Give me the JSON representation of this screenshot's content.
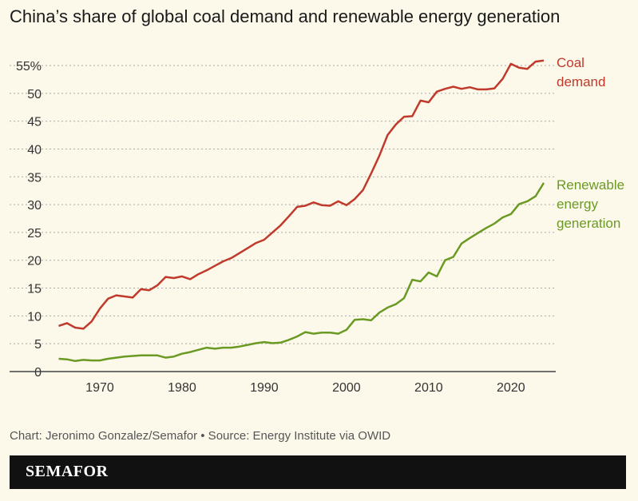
{
  "title": "China’s share of global coal demand and renewable energy generation",
  "credit": "Chart: Jeronimo Gonzalez/Semafor • Source: Energy Institute via OWID",
  "brand": "SEMAFOR",
  "chart_data": {
    "type": "line",
    "title": "China’s share of global coal demand and renewable energy generation",
    "xlabel": "",
    "ylabel": "",
    "xlim": [
      1965,
      2024
    ],
    "ylim": [
      0,
      55
    ],
    "x_ticks": [
      1970,
      1980,
      1990,
      2000,
      2010,
      2020
    ],
    "y_ticks": [
      0,
      5,
      10,
      15,
      20,
      25,
      30,
      35,
      40,
      45,
      50,
      55
    ],
    "y_tick_labels": [
      "0",
      "5",
      "10",
      "15",
      "20",
      "25",
      "30",
      "35",
      "40",
      "45",
      "50",
      "55%"
    ],
    "grid": "horizontal dotted",
    "legend": "direct labels at line ends (right)",
    "x": [
      1965,
      1966,
      1967,
      1968,
      1969,
      1970,
      1971,
      1972,
      1973,
      1974,
      1975,
      1976,
      1977,
      1978,
      1979,
      1980,
      1981,
      1982,
      1983,
      1984,
      1985,
      1986,
      1987,
      1988,
      1989,
      1990,
      1991,
      1992,
      1993,
      1994,
      1995,
      1996,
      1997,
      1998,
      1999,
      2000,
      2001,
      2002,
      2003,
      2004,
      2005,
      2006,
      2007,
      2008,
      2009,
      2010,
      2011,
      2012,
      2013,
      2014,
      2015,
      2016,
      2017,
      2018,
      2019,
      2020,
      2021,
      2022,
      2023,
      2024
    ],
    "series": [
      {
        "name": "Coal demand",
        "color": "#c0392b",
        "values": [
          8.2,
          8.7,
          7.9,
          7.7,
          9.0,
          11.3,
          13.1,
          13.7,
          13.5,
          13.3,
          14.8,
          14.6,
          15.5,
          17.0,
          16.8,
          17.1,
          16.6,
          17.5,
          18.2,
          19.0,
          19.8,
          20.4,
          21.3,
          22.2,
          23.1,
          23.7,
          25.0,
          26.3,
          27.9,
          29.6,
          29.8,
          30.4,
          29.9,
          29.8,
          30.6,
          29.9,
          31.0,
          32.6,
          35.6,
          38.8,
          42.5,
          44.4,
          45.8,
          45.9,
          48.7,
          48.4,
          50.3,
          50.8,
          51.2,
          50.8,
          51.1,
          50.7,
          50.7,
          50.9,
          52.6,
          55.3,
          54.6,
          54.4,
          55.7,
          55.9
        ]
      },
      {
        "name": "Renewable energy generation",
        "color": "#6a9a23",
        "values": [
          2.3,
          2.2,
          1.9,
          2.1,
          2.0,
          2.0,
          2.3,
          2.5,
          2.7,
          2.8,
          2.9,
          2.9,
          2.9,
          2.5,
          2.7,
          3.2,
          3.5,
          3.9,
          4.3,
          4.1,
          4.3,
          4.3,
          4.5,
          4.8,
          5.1,
          5.3,
          5.1,
          5.2,
          5.7,
          6.3,
          7.1,
          6.8,
          7.0,
          7.0,
          6.8,
          7.5,
          9.3,
          9.4,
          9.2,
          10.6,
          11.5,
          12.1,
          13.2,
          16.5,
          16.2,
          17.8,
          17.1,
          20.0,
          20.6,
          23.0,
          24.0,
          24.9,
          25.8,
          26.6,
          27.7,
          28.3,
          30.1,
          30.6,
          31.5,
          33.9
        ]
      }
    ],
    "series_labels": [
      {
        "lines": [
          "Coal",
          "demand"
        ]
      },
      {
        "lines": [
          "Renewable",
          "energy",
          "generation"
        ]
      }
    ]
  }
}
